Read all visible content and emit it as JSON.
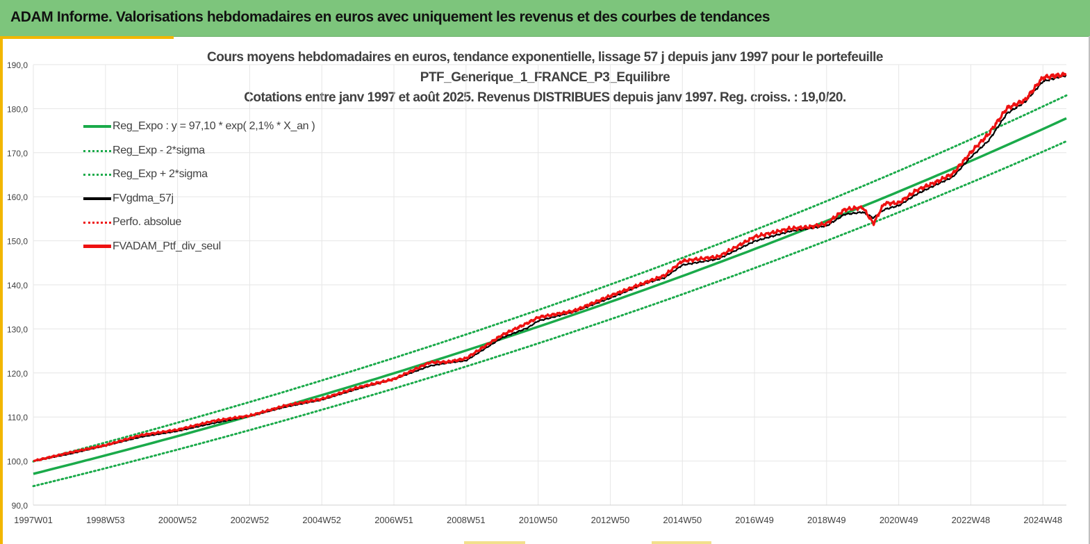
{
  "banner": {
    "title": "ADAM Informe. Valorisations hebdomadaires en euros avec uniquement les revenus et des courbes de tendances"
  },
  "colors": {
    "banner_bg": "#7dc57c",
    "accent": "#f2b600",
    "trend_green": "#1aaa4a",
    "series_red": "#ee1111",
    "series_black": "#000000"
  },
  "chart_data": {
    "type": "line",
    "title": [
      "Cours moyens hebdomadaires  en euros, tendance exponentielle, lissage 57 j depuis janv 1997 pour le portefeuille",
      "PTF_Generique_1_FRANCE_P3_Equilibre",
      "Cotations entre janv 1997 et août 2025. Revenus DISTRIBUES depuis janv 1997. Reg. croiss. : 19,0/20."
    ],
    "xlabel": "",
    "ylabel": "",
    "ylim": [
      90,
      190
    ],
    "y_ticks": [
      "90,0",
      "100,0",
      "110,0",
      "120,0",
      "130,0",
      "140,0",
      "150,0",
      "160,0",
      "170,0",
      "180,0",
      "190,0"
    ],
    "x_ticks": [
      "1997W01",
      "1998W53",
      "2000W52",
      "2002W52",
      "2004W52",
      "2006W51",
      "2008W51",
      "2010W50",
      "2012W50",
      "2014W50",
      "2016W49",
      "2018W49",
      "2020W49",
      "2022W48",
      "2024W48"
    ],
    "x_tick_years": [
      1997.0,
      1999.0,
      2001.0,
      2003.0,
      2005.0,
      2007.0,
      2009.0,
      2011.0,
      2013.0,
      2015.0,
      2017.0,
      2019.0,
      2021.0,
      2023.0,
      2025.0
    ],
    "x_range": [
      1997.0,
      2025.65
    ],
    "grid": true,
    "legend_position": "upper-left",
    "series": [
      {
        "name": "Reg_Expo : y = 97,10 * exp( 2,1% *  X_an )",
        "style": "solid-green",
        "x": [
          1997.0,
          2025.65
        ],
        "y": [
          97.1,
          177.8
        ]
      },
      {
        "name": "Reg_Exp - 2*sigma",
        "style": "dotted-green",
        "x": [
          1997.0,
          2025.65
        ],
        "y": [
          94.3,
          172.6
        ]
      },
      {
        "name": "Reg_Exp + 2*sigma",
        "style": "dotted-green",
        "x": [
          1997.0,
          2025.65
        ],
        "y": [
          99.9,
          183.0
        ]
      },
      {
        "name": "FVgdma_57j",
        "style": "solid-black",
        "x": [
          1997.0,
          1998.0,
          1999.0,
          2000.0,
          2001.0,
          2002.0,
          2003.0,
          2004.0,
          2005.0,
          2006.0,
          2007.0,
          2008.0,
          2008.5,
          2009.0,
          2010.0,
          2010.7,
          2011.0,
          2012.0,
          2013.0,
          2014.0,
          2014.5,
          2015.0,
          2016.0,
          2017.0,
          2018.0,
          2018.5,
          2019.0,
          2019.5,
          2020.0,
          2020.3,
          2020.6,
          2021.0,
          2021.5,
          2022.0,
          2022.5,
          2023.0,
          2023.5,
          2024.0,
          2024.5,
          2025.0,
          2025.65
        ],
        "y": [
          100.0,
          101.6,
          103.5,
          105.5,
          106.8,
          108.6,
          110.2,
          112.3,
          113.9,
          116.4,
          118.6,
          121.6,
          122.3,
          122.8,
          128.0,
          130.2,
          131.8,
          133.9,
          137.0,
          140.4,
          141.6,
          144.5,
          145.9,
          149.9,
          152.2,
          152.8,
          153.4,
          156.0,
          156.5,
          155.2,
          157.1,
          158.0,
          160.6,
          162.6,
          164.5,
          169.0,
          172.8,
          178.9,
          181.5,
          186.2,
          187.6
        ]
      },
      {
        "name": "Perfo. absolue",
        "style": "dotted-red",
        "x": [
          1997.0,
          2025.65
        ],
        "y": [
          100.0,
          187.6
        ]
      },
      {
        "name": "FVADAM_Ptf_div_seul",
        "style": "solid-red",
        "x": [
          1997.0,
          1998.0,
          1999.0,
          2000.0,
          2001.0,
          2002.0,
          2003.0,
          2004.0,
          2005.0,
          2006.0,
          2007.0,
          2008.0,
          2008.5,
          2009.0,
          2010.0,
          2010.7,
          2011.0,
          2012.0,
          2013.0,
          2014.0,
          2014.5,
          2015.0,
          2016.0,
          2017.0,
          2018.0,
          2018.5,
          2019.0,
          2019.5,
          2020.0,
          2020.3,
          2020.6,
          2021.0,
          2021.5,
          2022.0,
          2022.5,
          2023.0,
          2023.5,
          2024.0,
          2024.5,
          2025.0,
          2025.65
        ],
        "y": [
          100.0,
          101.9,
          103.6,
          105.9,
          107.1,
          109.1,
          110.3,
          112.6,
          114.1,
          116.7,
          118.6,
          122.4,
          122.5,
          123.3,
          128.6,
          131.3,
          132.6,
          134.1,
          137.5,
          140.6,
          142.1,
          145.4,
          146.4,
          150.9,
          152.8,
          153.1,
          153.9,
          157.1,
          157.6,
          153.9,
          158.5,
          158.6,
          161.5,
          163.2,
          165.2,
          170.1,
          174.3,
          180.1,
          181.9,
          187.1,
          187.8
        ]
      }
    ]
  }
}
